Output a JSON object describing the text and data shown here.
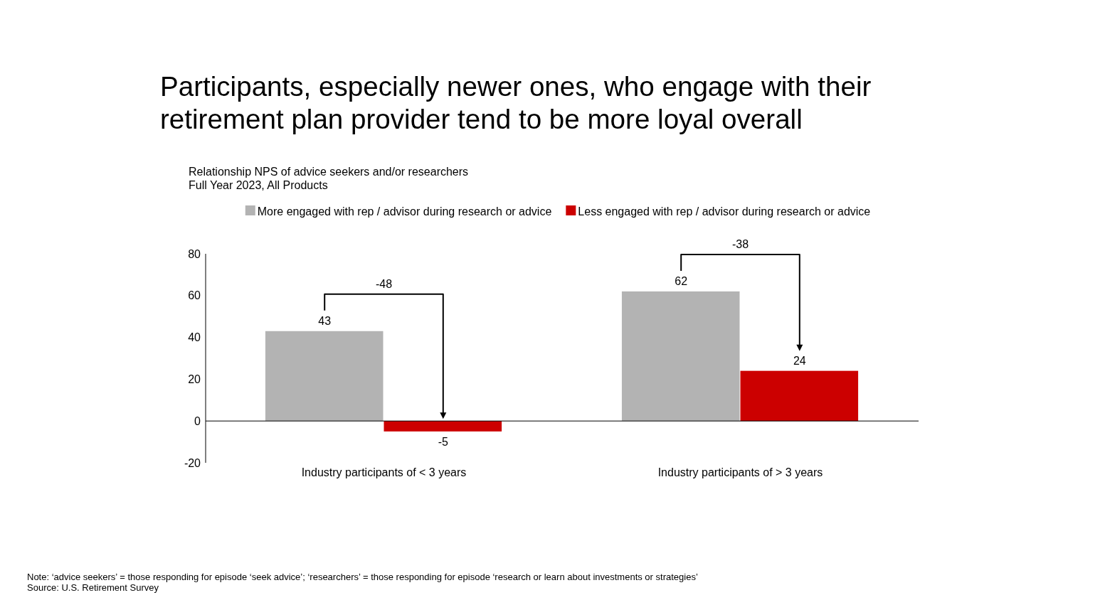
{
  "chart_data": {
    "type": "bar",
    "title": "Participants, especially newer ones, who engage with their\nretirement plan provider tend to be more loyal overall",
    "subtitle": "Relationship NPS of advice seekers and/or researchers\nFull Year 2023, All Products",
    "categories": [
      "Industry participants of < 3 years",
      "Industry participants of > 3 years"
    ],
    "series": [
      {
        "name": "More engaged with rep / advisor during research or advice",
        "color": "#b3b3b3",
        "values": [
          43,
          62
        ]
      },
      {
        "name": "Less engaged with rep / advisor during research or advice",
        "color": "#cc0000",
        "values": [
          -5,
          24
        ]
      }
    ],
    "ylim": [
      -20,
      80
    ],
    "yticks": [
      -20,
      0,
      20,
      40,
      60,
      80
    ],
    "data_labels": true,
    "legend": "top",
    "annotations": [
      "-48",
      "-38",
      "Note: ‘advice seekers’ = those responding for episode ‘seek advice’; ‘researchers’ = those responding for episode ‘research or learn about investments or strategies’",
      "Source: U.S. Retirement Survey"
    ]
  }
}
